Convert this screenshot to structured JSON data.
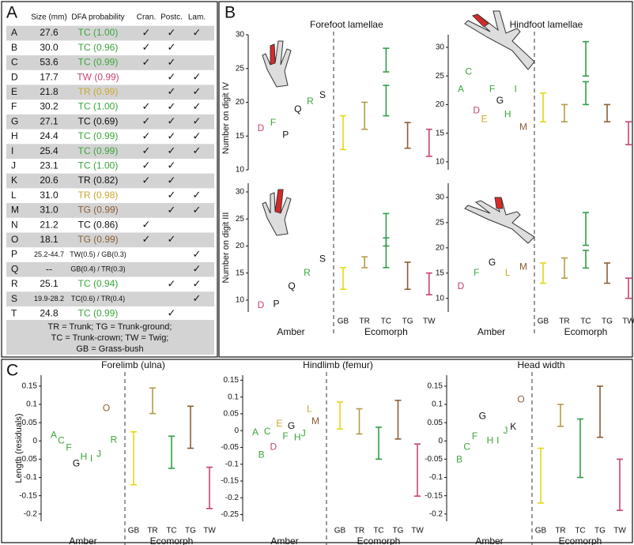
{
  "panels": [
    "A",
    "B",
    "C"
  ],
  "table": {
    "headers": [
      "Size (mm)",
      "DFA probability",
      "Cran.",
      "Postc.",
      "Lam."
    ],
    "rows": [
      {
        "id": "A",
        "size": "27.6",
        "dfa": "TC (1.00)",
        "color": "#3aa63a",
        "cran": "✓",
        "postc": "✓",
        "lam": "✓"
      },
      {
        "id": "B",
        "size": "30.0",
        "dfa": "TC (0.96)",
        "color": "#3aa63a",
        "cran": "✓",
        "postc": "✓"
      },
      {
        "id": "C",
        "size": "53.6",
        "dfa": "TC (0.99)",
        "color": "#3aa63a",
        "cran": "✓",
        "postc": "✓"
      },
      {
        "id": "D",
        "size": "17.7",
        "dfa": "TW (0.99)",
        "color": "#c8446e",
        "postc": "✓",
        "lam": "✓"
      },
      {
        "id": "E",
        "size": "21.8",
        "dfa": "TR (0.99)",
        "color": "#c8a832",
        "postc": "✓",
        "lam": "✓"
      },
      {
        "id": "F",
        "size": "30.2",
        "dfa": "TC (1.00)",
        "color": "#3aa63a",
        "cran": "✓",
        "postc": "✓",
        "lam": "✓"
      },
      {
        "id": "G",
        "size": "27.1",
        "dfa": "TC (0.69)",
        "color": "#111111",
        "cran": "✓",
        "postc": "✓",
        "lam": "✓"
      },
      {
        "id": "H",
        "size": "24.4",
        "dfa": "TC (0.99)",
        "color": "#3aa63a",
        "cran": "✓",
        "postc": "✓",
        "lam": "✓"
      },
      {
        "id": "I",
        "size": "25.4",
        "dfa": "TC (0.99)",
        "color": "#3aa63a",
        "cran": "✓",
        "postc": "✓",
        "lam": "✓"
      },
      {
        "id": "J",
        "size": "23.1",
        "dfa": "TC (1.00)",
        "color": "#3aa63a",
        "cran": "✓",
        "postc": "✓"
      },
      {
        "id": "K",
        "size": "20.6",
        "dfa": "TR (0.82)",
        "color": "#111111",
        "cran": "✓",
        "postc": "✓"
      },
      {
        "id": "L",
        "size": "31.0",
        "dfa": "TR (0.98)",
        "color": "#c8a832",
        "postc": "✓",
        "lam": "✓"
      },
      {
        "id": "M",
        "size": "31.0",
        "dfa": "TG (0.99)",
        "color": "#8b5e34",
        "postc": "✓",
        "lam": "✓"
      },
      {
        "id": "N",
        "size": "21.2",
        "dfa": "TC (0.86)",
        "color": "#111111",
        "cran": "✓"
      },
      {
        "id": "O",
        "size": "18.1",
        "dfa": "TG (0.99)",
        "color": "#8b5e34",
        "cran": "✓",
        "postc": "✓"
      },
      {
        "id": "P",
        "size": "25.2-44.7",
        "dfa": "TW(0.5) / GB(0.3)",
        "color": "#111111",
        "lam": "✓"
      },
      {
        "id": "Q",
        "size": "--",
        "dfa": "GB(0.4) / TR(0.3)",
        "color": "#111111",
        "lam": "✓"
      },
      {
        "id": "R",
        "size": "25.1",
        "dfa": "TC (0.94)",
        "color": "#3aa63a",
        "postc": "✓",
        "lam": "✓"
      },
      {
        "id": "S",
        "size": "19.9-28.2",
        "dfa": "TC(0.6) / TR(0.4)",
        "color": "#111111",
        "lam": "✓"
      },
      {
        "id": "T",
        "size": "24.8",
        "dfa": "TC (0.99)",
        "color": "#3aa63a",
        "postc": "✓"
      }
    ],
    "legend": [
      "TR = Trunk; TG = Trunk-ground;",
      "TC = Trunk-crown; TW = Twig;",
      "GB = Grass-bush"
    ]
  },
  "chart_data": [
    {
      "type": "errorbar",
      "title": "Forefoot lamellae",
      "ylabel": "Number on digit IV",
      "ylim": [
        10,
        30
      ],
      "yticks": [
        10,
        15,
        20,
        25,
        30
      ],
      "amber": {
        "labels": [
          "D",
          "F",
          "P",
          "Q",
          "R",
          "S"
        ],
        "values": [
          16.1,
          16.9,
          15.1,
          18.9,
          20.1,
          21
        ],
        "colors": [
          "#c8446e",
          "#3aa63a",
          "#111111",
          "#111111",
          "#3aa63a",
          "#111111"
        ]
      },
      "colors": [
        "#e6d619",
        "#b59b4a",
        "#2e9e48",
        "#8b5e34",
        "#c8446e"
      ],
      "ranges": [
        [
          [
            13,
            18
          ]
        ],
        [
          [
            16,
            20
          ]
        ],
        [
          [
            18,
            22.5
          ],
          [
            24.5,
            28
          ]
        ],
        [
          [
            13.2,
            17
          ]
        ],
        [
          [
            12,
            16
          ]
        ]
      ]
    },
    {
      "type": "errorbar",
      "title": "Hindfoot lamellae",
      "ylim": [
        8.6,
        32.2
      ],
      "yticks": [
        10,
        15,
        20,
        25,
        30
      ],
      "amber": {
        "labels": [
          "A",
          "C",
          "D",
          "E",
          "F",
          "G",
          "H",
          "I",
          "M"
        ],
        "values": [
          22.6,
          25.7,
          18.9,
          17.4,
          22.6,
          20.6,
          18.2,
          22.6,
          16
        ],
        "colors": [
          "#3aa63a",
          "#3aa63a",
          "#c8446e",
          "#c8a832",
          "#3aa63a",
          "#111111",
          "#3aa63a",
          "#3aa63a",
          "#8b5e34"
        ]
      },
      "colors": [
        "#e6d619",
        "#b59b4a",
        "#2e9e48",
        "#8b5e34",
        "#c8446e"
      ],
      "ranges": [
        [
          [
            17,
            22
          ]
        ],
        [
          [
            17,
            20
          ]
        ],
        [
          [
            20,
            24
          ],
          [
            25,
            31
          ]
        ],
        [
          [
            17,
            20
          ]
        ],
        [
          [
            13,
            17
          ]
        ]
      ]
    },
    {
      "type": "errorbar",
      "ylabel": "Number on digit III",
      "xlabels": [
        "Amber",
        "Ecomorph"
      ],
      "categories": [
        "GB",
        "TR",
        "TC",
        "TG",
        "TW"
      ],
      "ylim": [
        7.8,
        31.6
      ],
      "yticks": [
        10,
        15,
        20,
        25,
        30
      ],
      "amber": {
        "labels": [
          "D",
          "P",
          "Q",
          "R",
          "S"
        ],
        "values": [
          9,
          9.2,
          12.5,
          15,
          17.5
        ],
        "colors": [
          "#c8446e",
          "#111111",
          "#111111",
          "#3aa63a",
          "#111111"
        ]
      },
      "colors": [
        "#e6d619",
        "#b59b4a",
        "#2e9e48",
        "#8b5e34",
        "#c8446e"
      ],
      "ranges": [
        [
          [
            12,
            16
          ]
        ],
        [
          [
            16,
            18
          ]
        ],
        [
          [
            16,
            21.5
          ],
          [
            20,
            26
          ]
        ],
        [
          [
            12,
            17
          ]
        ],
        [
          [
            11,
            15
          ]
        ]
      ]
    },
    {
      "type": "errorbar",
      "xlabels": [
        "Amber",
        "Ecomorph"
      ],
      "categories": [
        "GB",
        "TR",
        "TC",
        "TG",
        "TW"
      ],
      "ylim": [
        7.3,
        32.8
      ],
      "yticks": [
        10,
        15,
        20,
        25,
        30
      ],
      "amber": {
        "labels": [
          "D",
          "F",
          "G",
          "L",
          "M"
        ],
        "values": [
          12.3,
          15,
          17,
          15,
          16.2
        ],
        "colors": [
          "#c8446e",
          "#3aa63a",
          "#111111",
          "#c8a832",
          "#8b5e34"
        ]
      },
      "colors": [
        "#e6d619",
        "#b59b4a",
        "#2e9e48",
        "#8b5e34",
        "#c8446e"
      ],
      "ranges": [
        [
          [
            13,
            17
          ]
        ],
        [
          [
            14,
            18
          ]
        ],
        [
          [
            16,
            19.5
          ],
          [
            20.5,
            27
          ]
        ],
        [
          [
            13,
            17
          ]
        ],
        [
          [
            10,
            14
          ]
        ]
      ]
    },
    {
      "type": "errorbar",
      "title": "Forelimb (ulna)",
      "ylabel": "Length (residuals)",
      "xlabels": [
        "Amber",
        "Ecomorph"
      ],
      "categories": [
        "GB",
        "TR",
        "TC",
        "TG",
        "TW"
      ],
      "ylim": [
        -0.22,
        0.18
      ],
      "yticks": [
        -0.2,
        -0.15,
        -0.1,
        -0.05,
        0,
        0.05,
        0.1,
        0.15
      ],
      "amber": {
        "labels": [
          "A",
          "C",
          "F",
          "G",
          "H",
          "I",
          "J",
          "O",
          "R"
        ],
        "values": [
          0.015,
          0,
          -0.02,
          -0.063,
          -0.044,
          -0.05,
          -0.037,
          0.088,
          0.002
        ],
        "colors": [
          "#3aa63a",
          "#3aa63a",
          "#3aa63a",
          "#111111",
          "#3aa63a",
          "#3aa63a",
          "#3aa63a",
          "#8b5e34",
          "#3aa63a"
        ]
      },
      "colors": [
        "#e6d619",
        "#b59b4a",
        "#2e9e48",
        "#8b5e34",
        "#c8446e"
      ],
      "ranges": [
        [
          [
            -0.12,
            0.025
          ]
        ],
        [
          [
            0.075,
            0.145
          ]
        ],
        [
          [
            -0.075,
            0.013
          ]
        ],
        [
          [
            -0.02,
            0.095
          ]
        ],
        [
          [
            -0.185,
            -0.072
          ]
        ]
      ]
    },
    {
      "type": "errorbar",
      "title": "Hindlimb (femur)",
      "xlabels": [
        "Amber",
        "Ecomorph"
      ],
      "categories": [
        "GB",
        "TR",
        "TC",
        "TG",
        "TW"
      ],
      "ylim": [
        -0.27,
        0.165
      ],
      "yticks": [
        -0.25,
        -0.2,
        -0.15,
        -0.1,
        -0.05,
        0,
        0.05,
        0.1,
        0.15
      ],
      "amber": {
        "labels": [
          "A",
          "B",
          "C",
          "D",
          "E",
          "F",
          "G",
          "H",
          "J",
          "L",
          "M"
        ],
        "values": [
          -0.006,
          -0.073,
          -0.004,
          -0.05,
          0.02,
          -0.018,
          0.012,
          -0.022,
          -0.01,
          0.063,
          0.027
        ],
        "colors": [
          "#3aa63a",
          "#3aa63a",
          "#3aa63a",
          "#c8446e",
          "#c8a832",
          "#3aa63a",
          "#111111",
          "#3aa63a",
          "#3aa63a",
          "#c8a832",
          "#8b5e34"
        ]
      },
      "colors": [
        "#e6d619",
        "#b59b4a",
        "#2e9e48",
        "#8b5e34",
        "#c8446e"
      ],
      "ranges": [
        [
          [
            0.005,
            0.085
          ]
        ],
        [
          [
            -0.01,
            0.065
          ]
        ],
        [
          [
            -0.085,
            0.01
          ]
        ],
        [
          [
            -0.025,
            0.09
          ]
        ],
        [
          [
            -0.195,
            -0.04
          ]
        ]
      ]
    },
    {
      "type": "errorbar",
      "title": "Head width",
      "xlabels": [
        "Amber",
        "Ecomorph"
      ],
      "categories": [
        "GB",
        "TR",
        "TC",
        "TG",
        "TW"
      ],
      "ylim": [
        -0.22,
        0.18
      ],
      "yticks": [
        -0.2,
        -0.15,
        -0.1,
        -0.05,
        0,
        0.05,
        0.1,
        0.15
      ],
      "amber": {
        "labels": [
          "B",
          "C",
          "F",
          "G",
          "H",
          "I",
          "J",
          "K",
          "O"
        ],
        "values": [
          -0.052,
          -0.017,
          0.012,
          0.067,
          0,
          0,
          0.027,
          0.038,
          0.112
        ],
        "colors": [
          "#3aa63a",
          "#3aa63a",
          "#3aa63a",
          "#111111",
          "#3aa63a",
          "#3aa63a",
          "#3aa63a",
          "#111111",
          "#8b5e34"
        ]
      },
      "colors": [
        "#e6d619",
        "#b59b4a",
        "#2e9e48",
        "#8b5e34",
        "#c8446e"
      ],
      "ranges": [
        [
          [
            -0.17,
            -0.02
          ]
        ],
        [
          [
            0.04,
            0.1
          ]
        ],
        [
          [
            -0.1,
            0.06
          ]
        ],
        [
          [
            0.01,
            0.15
          ]
        ],
        [
          [
            -0.19,
            -0.05
          ]
        ]
      ]
    }
  ]
}
